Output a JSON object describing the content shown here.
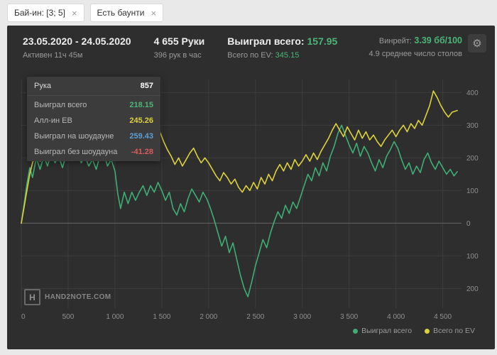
{
  "colors": {
    "green": "#4cb576",
    "yellow": "#ddd23c",
    "blue": "#5b9fd4",
    "red": "#d95c5c"
  },
  "icons": {
    "close": "×",
    "gear": "⚙"
  },
  "filters": {
    "chips": [
      {
        "label": "Бай-ин: [3; 5]"
      },
      {
        "label": "Есть баунти"
      }
    ]
  },
  "header": {
    "date_range": "23.05.2020 - 24.05.2020",
    "active_time": "Активен 11ч 45м",
    "hands": "4 655 Руки",
    "hands_per_hour": "396 рук в час",
    "won_label": "Выиграл всего:",
    "won_value": "157.95",
    "ev_label": "Всего по EV:",
    "ev_value": "345.15",
    "winrate_label": "Винрейт:",
    "winrate_value": "3.39 бб/100",
    "avg_tables": "4.9 среднее число столов"
  },
  "tooltip": {
    "rows": [
      {
        "label": "Рука",
        "value": "857",
        "color": "#ffffff"
      },
      {
        "label": "Выиграл всего",
        "value": "218.15",
        "color": "#4cb576"
      },
      {
        "label": "Алл-ин ЕВ",
        "value": "245.26",
        "color": "#ddd23c"
      },
      {
        "label": "Выиграл на шоудауне",
        "value": "259.43",
        "color": "#5b9fd4"
      },
      {
        "label": "Выиграл без шоудауна",
        "value": "-41.28",
        "color": "#d95c5c"
      }
    ]
  },
  "logo": {
    "mark": "H",
    "text": "HAND2NOTE.COM"
  },
  "legend": {
    "items": [
      {
        "label": "Выиграл всего",
        "color": "#3fae75"
      },
      {
        "label": "Всего по EV",
        "color": "#ddd23c"
      }
    ]
  },
  "chart_data": {
    "type": "line",
    "title": "",
    "xlabel": "",
    "ylabel": "",
    "xlim": [
      0,
      4700
    ],
    "ylim": [
      -260,
      440
    ],
    "grid": true,
    "legend_position": "bottom-right",
    "grid_color": "#3d3d3d",
    "zero_color": "#5a5a5a",
    "axis_color": "#8f8f8f",
    "x_ticks": [
      {
        "v": 0,
        "label": "0"
      },
      {
        "v": 500,
        "label": "500"
      },
      {
        "v": 1000,
        "label": "1 000"
      },
      {
        "v": 1500,
        "label": "1 500"
      },
      {
        "v": 2000,
        "label": "2 000"
      },
      {
        "v": 2500,
        "label": "2 500"
      },
      {
        "v": 3000,
        "label": "3 000"
      },
      {
        "v": 3500,
        "label": "3 500"
      },
      {
        "v": 4000,
        "label": "4 000"
      },
      {
        "v": 4500,
        "label": "4 500"
      }
    ],
    "y_ticks": [
      {
        "v": 400,
        "label": "400"
      },
      {
        "v": 300,
        "label": "300"
      },
      {
        "v": 200,
        "label": "200"
      },
      {
        "v": 100,
        "label": "100"
      },
      {
        "v": 0,
        "label": "0"
      },
      {
        "v": -100,
        "label": "100"
      },
      {
        "v": -200,
        "label": "200"
      }
    ],
    "series": [
      {
        "name": "Выиграл всего",
        "color": "#3fae75",
        "final_value": 157.95,
        "points": [
          [
            0,
            0
          ],
          [
            30,
            60
          ],
          [
            60,
            120
          ],
          [
            90,
            170
          ],
          [
            120,
            140
          ],
          [
            160,
            200
          ],
          [
            200,
            165
          ],
          [
            240,
            205
          ],
          [
            280,
            175
          ],
          [
            320,
            215
          ],
          [
            360,
            185
          ],
          [
            400,
            205
          ],
          [
            440,
            170
          ],
          [
            480,
            210
          ],
          [
            520,
            235
          ],
          [
            560,
            195
          ],
          [
            600,
            215
          ],
          [
            640,
            185
          ],
          [
            680,
            205
          ],
          [
            720,
            175
          ],
          [
            760,
            195
          ],
          [
            800,
            165
          ],
          [
            840,
            205
          ],
          [
            880,
            215
          ],
          [
            920,
            175
          ],
          [
            960,
            195
          ],
          [
            1000,
            160
          ],
          [
            1030,
            90
          ],
          [
            1060,
            45
          ],
          [
            1100,
            95
          ],
          [
            1140,
            60
          ],
          [
            1180,
            95
          ],
          [
            1220,
            70
          ],
          [
            1260,
            95
          ],
          [
            1300,
            115
          ],
          [
            1340,
            85
          ],
          [
            1380,
            115
          ],
          [
            1420,
            95
          ],
          [
            1460,
            125
          ],
          [
            1500,
            100
          ],
          [
            1540,
            70
          ],
          [
            1580,
            95
          ],
          [
            1620,
            45
          ],
          [
            1660,
            25
          ],
          [
            1700,
            60
          ],
          [
            1740,
            35
          ],
          [
            1780,
            75
          ],
          [
            1820,
            105
          ],
          [
            1860,
            85
          ],
          [
            1900,
            65
          ],
          [
            1940,
            95
          ],
          [
            1980,
            75
          ],
          [
            2020,
            45
          ],
          [
            2060,
            10
          ],
          [
            2100,
            -30
          ],
          [
            2140,
            -70
          ],
          [
            2180,
            -40
          ],
          [
            2220,
            -90
          ],
          [
            2260,
            -60
          ],
          [
            2300,
            -110
          ],
          [
            2340,
            -160
          ],
          [
            2380,
            -200
          ],
          [
            2420,
            -225
          ],
          [
            2460,
            -180
          ],
          [
            2500,
            -130
          ],
          [
            2540,
            -90
          ],
          [
            2580,
            -50
          ],
          [
            2620,
            -75
          ],
          [
            2660,
            -30
          ],
          [
            2700,
            5
          ],
          [
            2740,
            35
          ],
          [
            2780,
            15
          ],
          [
            2820,
            55
          ],
          [
            2860,
            30
          ],
          [
            2900,
            65
          ],
          [
            2940,
            45
          ],
          [
            2980,
            80
          ],
          [
            3020,
            115
          ],
          [
            3060,
            150
          ],
          [
            3100,
            130
          ],
          [
            3140,
            170
          ],
          [
            3180,
            145
          ],
          [
            3220,
            185
          ],
          [
            3260,
            160
          ],
          [
            3300,
            205
          ],
          [
            3340,
            235
          ],
          [
            3380,
            275
          ],
          [
            3420,
            300
          ],
          [
            3460,
            270
          ],
          [
            3500,
            240
          ],
          [
            3540,
            215
          ],
          [
            3580,
            245
          ],
          [
            3620,
            205
          ],
          [
            3660,
            235
          ],
          [
            3700,
            215
          ],
          [
            3740,
            185
          ],
          [
            3780,
            160
          ],
          [
            3820,
            195
          ],
          [
            3860,
            170
          ],
          [
            3900,
            205
          ],
          [
            3940,
            225
          ],
          [
            3980,
            250
          ],
          [
            4020,
            230
          ],
          [
            4060,
            195
          ],
          [
            4100,
            165
          ],
          [
            4140,
            185
          ],
          [
            4180,
            150
          ],
          [
            4220,
            175
          ],
          [
            4260,
            155
          ],
          [
            4300,
            195
          ],
          [
            4340,
            215
          ],
          [
            4380,
            185
          ],
          [
            4420,
            165
          ],
          [
            4460,
            190
          ],
          [
            4500,
            170
          ],
          [
            4540,
            150
          ],
          [
            4580,
            165
          ],
          [
            4620,
            145
          ],
          [
            4655,
            157.95
          ]
        ]
      },
      {
        "name": "Всего по EV",
        "color": "#ddd23c",
        "final_value": 345.15,
        "points": [
          [
            0,
            0
          ],
          [
            30,
            50
          ],
          [
            60,
            100
          ],
          [
            90,
            150
          ],
          [
            120,
            185
          ],
          [
            160,
            215
          ],
          [
            200,
            190
          ],
          [
            240,
            225
          ],
          [
            280,
            205
          ],
          [
            320,
            235
          ],
          [
            360,
            215
          ],
          [
            400,
            230
          ],
          [
            440,
            205
          ],
          [
            480,
            235
          ],
          [
            520,
            250
          ],
          [
            560,
            225
          ],
          [
            600,
            240
          ],
          [
            640,
            215
          ],
          [
            680,
            235
          ],
          [
            720,
            210
          ],
          [
            760,
            230
          ],
          [
            800,
            205
          ],
          [
            840,
            225
          ],
          [
            880,
            240
          ],
          [
            920,
            215
          ],
          [
            960,
            230
          ],
          [
            1000,
            235
          ],
          [
            1040,
            210
          ],
          [
            1080,
            225
          ],
          [
            1120,
            200
          ],
          [
            1160,
            215
          ],
          [
            1200,
            225
          ],
          [
            1240,
            240
          ],
          [
            1280,
            220
          ],
          [
            1320,
            245
          ],
          [
            1360,
            225
          ],
          [
            1400,
            245
          ],
          [
            1440,
            265
          ],
          [
            1480,
            280
          ],
          [
            1520,
            250
          ],
          [
            1560,
            225
          ],
          [
            1600,
            205
          ],
          [
            1640,
            180
          ],
          [
            1680,
            200
          ],
          [
            1720,
            175
          ],
          [
            1760,
            195
          ],
          [
            1800,
            215
          ],
          [
            1840,
            230
          ],
          [
            1880,
            205
          ],
          [
            1920,
            185
          ],
          [
            1960,
            200
          ],
          [
            2000,
            185
          ],
          [
            2040,
            165
          ],
          [
            2080,
            145
          ],
          [
            2120,
            130
          ],
          [
            2160,
            155
          ],
          [
            2200,
            140
          ],
          [
            2240,
            120
          ],
          [
            2280,
            135
          ],
          [
            2320,
            110
          ],
          [
            2360,
            95
          ],
          [
            2400,
            115
          ],
          [
            2440,
            100
          ],
          [
            2480,
            125
          ],
          [
            2520,
            105
          ],
          [
            2560,
            140
          ],
          [
            2600,
            120
          ],
          [
            2640,
            150
          ],
          [
            2680,
            130
          ],
          [
            2720,
            160
          ],
          [
            2760,
            180
          ],
          [
            2800,
            160
          ],
          [
            2840,
            185
          ],
          [
            2880,
            165
          ],
          [
            2920,
            195
          ],
          [
            2960,
            175
          ],
          [
            3000,
            190
          ],
          [
            3040,
            210
          ],
          [
            3080,
            190
          ],
          [
            3120,
            215
          ],
          [
            3160,
            195
          ],
          [
            3200,
            220
          ],
          [
            3240,
            240
          ],
          [
            3280,
            260
          ],
          [
            3320,
            285
          ],
          [
            3360,
            305
          ],
          [
            3400,
            285
          ],
          [
            3440,
            265
          ],
          [
            3480,
            295
          ],
          [
            3520,
            275
          ],
          [
            3560,
            255
          ],
          [
            3600,
            285
          ],
          [
            3640,
            260
          ],
          [
            3680,
            280
          ],
          [
            3720,
            255
          ],
          [
            3760,
            270
          ],
          [
            3800,
            250
          ],
          [
            3840,
            235
          ],
          [
            3880,
            255
          ],
          [
            3920,
            270
          ],
          [
            3960,
            285
          ],
          [
            4000,
            265
          ],
          [
            4040,
            285
          ],
          [
            4080,
            300
          ],
          [
            4120,
            280
          ],
          [
            4160,
            305
          ],
          [
            4200,
            290
          ],
          [
            4240,
            315
          ],
          [
            4280,
            300
          ],
          [
            4320,
            330
          ],
          [
            4360,
            360
          ],
          [
            4400,
            405
          ],
          [
            4440,
            385
          ],
          [
            4480,
            360
          ],
          [
            4520,
            340
          ],
          [
            4560,
            325
          ],
          [
            4600,
            340
          ],
          [
            4655,
            345.15
          ]
        ]
      }
    ]
  }
}
